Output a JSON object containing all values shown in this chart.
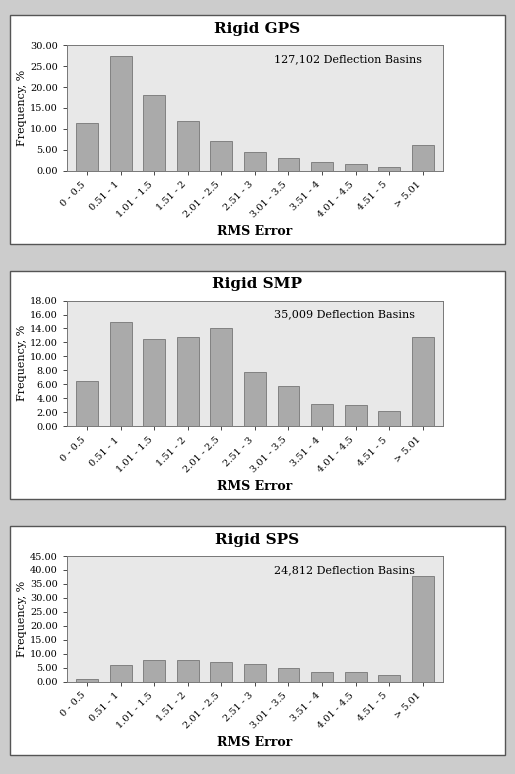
{
  "charts": [
    {
      "title": "Rigid GPS",
      "annotation": "127,102 Deflection Basins",
      "values": [
        11.5,
        27.5,
        18.0,
        12.0,
        7.2,
        4.5,
        3.0,
        2.0,
        1.5,
        1.0,
        6.2
      ],
      "ylim": [
        0,
        30
      ],
      "yticks": [
        0.0,
        5.0,
        10.0,
        15.0,
        20.0,
        25.0,
        30.0
      ],
      "ytick_labels": [
        "0.00",
        "5.00",
        "10.00",
        "15.00",
        "20.00",
        "25.00",
        "30.00"
      ]
    },
    {
      "title": "Rigid SMP",
      "annotation": "35,009 Deflection Basins",
      "values": [
        6.5,
        15.0,
        12.5,
        12.8,
        14.0,
        7.8,
        5.8,
        3.2,
        3.1,
        2.2,
        12.8
      ],
      "ylim": [
        0,
        18
      ],
      "yticks": [
        0.0,
        2.0,
        4.0,
        6.0,
        8.0,
        10.0,
        12.0,
        14.0,
        16.0,
        18.0
      ],
      "ytick_labels": [
        "0.00",
        "2.00",
        "4.00",
        "6.00",
        "8.00",
        "10.00",
        "12.00",
        "14.00",
        "16.00",
        "18.00"
      ]
    },
    {
      "title": "Rigid SPS",
      "annotation": "24,812 Deflection Basins",
      "values": [
        1.0,
        5.8,
        7.8,
        7.8,
        7.0,
        6.2,
        4.8,
        3.5,
        3.5,
        2.5,
        38.0
      ],
      "ylim": [
        0,
        45
      ],
      "yticks": [
        0.0,
        5.0,
        10.0,
        15.0,
        20.0,
        25.0,
        30.0,
        35.0,
        40.0,
        45.0
      ],
      "ytick_labels": [
        "0.00",
        "5.00",
        "10.00",
        "15.00",
        "20.00",
        "25.00",
        "30.00",
        "35.00",
        "40.00",
        "45.00"
      ]
    }
  ],
  "categories": [
    "0 - 0.5",
    "0.51 - 1",
    "1.01 - 1.5",
    "1.51 - 2",
    "2.01 - 2.5",
    "2.51 - 3",
    "3.01 - 3.5",
    "3.51 - 4",
    "4.01 - 4.5",
    "4.51 - 5",
    "> 5.01"
  ],
  "bar_color": "#aaaaaa",
  "bar_edgecolor": "#666666",
  "ylabel": "Frequency, %",
  "xlabel": "RMS Error",
  "plot_bg_color": "#e8e8e8",
  "fig_bg_color": "#cccccc",
  "box_bg_color": "#ffffff",
  "title_fontsize": 11,
  "label_fontsize": 8,
  "tick_fontsize": 7,
  "annotation_fontsize": 8,
  "xlabel_fontsize": 9
}
